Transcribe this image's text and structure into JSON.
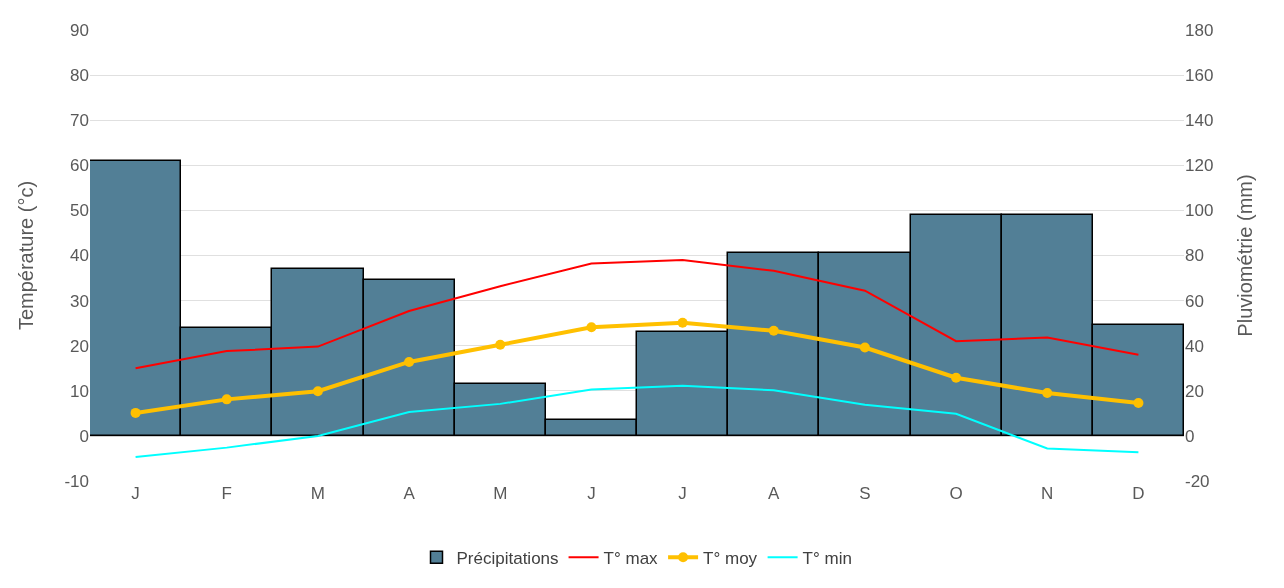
{
  "chart_data": {
    "type": "bar",
    "categories": [
      "J",
      "F",
      "M",
      "A",
      "M",
      "J",
      "J",
      "A",
      "S",
      "O",
      "N",
      "D"
    ],
    "ylabel": "Température (°c)",
    "y2label": "Pluviométrie (mm)",
    "ylim": [
      -10,
      90
    ],
    "yticks": [
      -10,
      0,
      10,
      20,
      30,
      40,
      50,
      60,
      70,
      80,
      90
    ],
    "y2lim": [
      -20,
      180
    ],
    "y2ticks": [
      -20,
      0,
      20,
      40,
      60,
      80,
      100,
      120,
      140,
      160,
      180
    ],
    "grid": "y",
    "legend": "bottom",
    "series": [
      {
        "name": "Précipitations",
        "axis": "y2",
        "color": "#527f96",
        "values": [
          122,
          48,
          74,
          69,
          23,
          7,
          46,
          81,
          81,
          98,
          98,
          49
        ]
      },
      {
        "name": "T° max",
        "type": "line",
        "color": "#ff0000",
        "marker": "none",
        "values": [
          15.0,
          18.8,
          19.8,
          27.7,
          33.2,
          38.2,
          39.0,
          36.6,
          32.2,
          21.0,
          21.8,
          18.0
        ]
      },
      {
        "name": "T° moy",
        "type": "line",
        "color": "#ffc000",
        "marker": "circle",
        "values": [
          5.1,
          8.1,
          9.9,
          16.4,
          20.2,
          24.1,
          25.1,
          23.3,
          19.6,
          12.9,
          9.5,
          7.3
        ]
      },
      {
        "name": "T° min",
        "type": "line",
        "color": "#00ffff",
        "marker": "none",
        "values": [
          -4.7,
          -2.6,
          0.0,
          5.3,
          7.1,
          10.3,
          11.1,
          10.1,
          6.9,
          4.9,
          -2.8,
          -3.6
        ]
      }
    ]
  }
}
